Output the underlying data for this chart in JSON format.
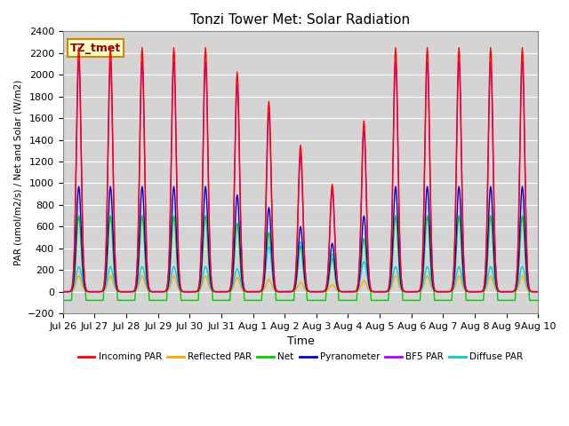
{
  "title": "Tonzi Tower Met: Solar Radiation",
  "ylabel": "PAR (umol/m2/s) / Net and Solar (W/m2)",
  "xlabel": "Time",
  "ylim": [
    -200,
    2400
  ],
  "annotation": "TZ_tmet",
  "background_color": "#d4d4d4",
  "series": {
    "incoming_par": {
      "label": "Incoming PAR",
      "color": "#ff0000"
    },
    "reflected_par": {
      "label": "Reflected PAR",
      "color": "#ffa500"
    },
    "net": {
      "label": "Net",
      "color": "#00cc00"
    },
    "pyranometer": {
      "label": "Pyranometer",
      "color": "#0000cc"
    },
    "bf5_par": {
      "label": "BF5 PAR",
      "color": "#aa00ff"
    },
    "diffuse_par": {
      "label": "Diffuse PAR",
      "color": "#00cccc"
    }
  },
  "x_tick_labels": [
    "Jul 26",
    "Jul 27",
    "Jul 28",
    "Jul 29",
    "Jul 30",
    "Jul 31",
    "Aug 1",
    "Aug 2",
    "Aug 3",
    "Aug 4",
    "Aug 5",
    "Aug 6",
    "Aug 7",
    "Aug 8",
    "Aug 9",
    "Aug 10"
  ],
  "num_days": 15,
  "peak_mults_incoming": [
    1.0,
    1.0,
    1.0,
    1.0,
    1.0,
    0.9,
    0.78,
    0.6,
    0.44,
    0.7,
    1.0,
    1.0,
    1.0,
    1.0,
    1.0
  ],
  "peak_mults_pyrano": [
    1.0,
    1.0,
    1.0,
    1.0,
    1.0,
    0.92,
    0.8,
    0.62,
    0.46,
    0.72,
    1.0,
    1.0,
    1.0,
    1.0,
    1.0
  ],
  "peak_mults_bf5": [
    1.0,
    1.0,
    1.0,
    1.0,
    1.0,
    0.9,
    0.78,
    0.6,
    0.44,
    0.7,
    1.0,
    1.0,
    1.0,
    1.0,
    1.0
  ],
  "peak_mults_diffuse": [
    1.0,
    1.0,
    1.0,
    1.0,
    1.0,
    0.92,
    1.8,
    2.0,
    1.5,
    1.2,
    1.0,
    1.0,
    1.0,
    1.0,
    1.0
  ],
  "incoming_peak": 2250,
  "reflected_peak": 145,
  "net_peak": 700,
  "net_neg": -80,
  "pyranometer_peak": 970,
  "bf5_peak": 2120,
  "diffuse_peak": 230
}
